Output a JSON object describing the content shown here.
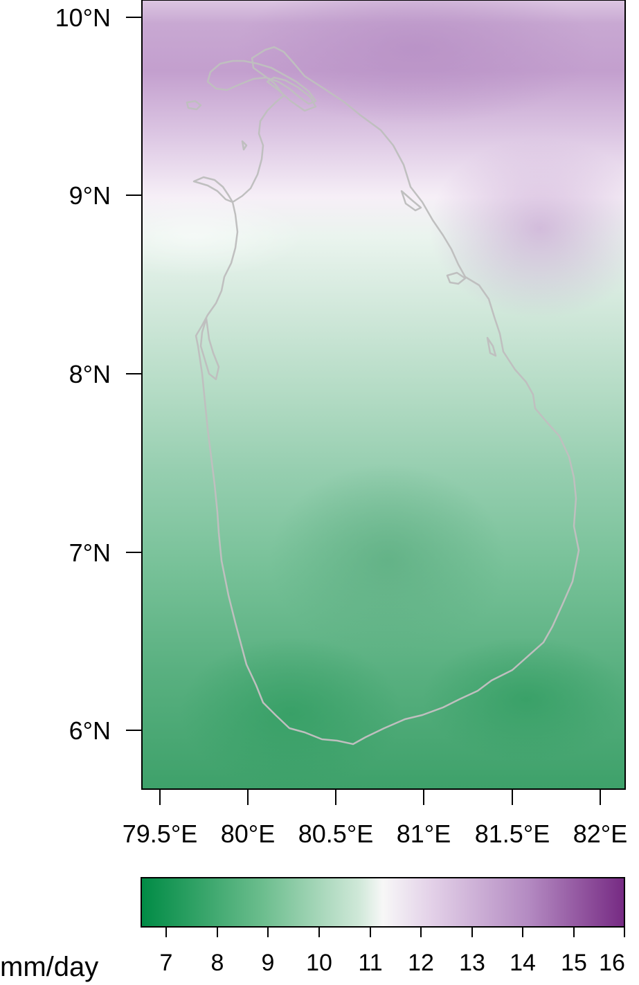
{
  "map": {
    "latitude_ticks": [
      "6°N",
      "7°N",
      "8°N",
      "9°N",
      "10°N"
    ],
    "longitude_ticks": [
      "79.5°E",
      "80°E",
      "80.5°E",
      "81°E",
      "81.5°E",
      "82°E"
    ],
    "extent": {
      "lon_min": 79.4,
      "lon_max": 82.13,
      "lat_min": 5.67,
      "lat_max": 10.1
    },
    "coastline_color": "#bfbfbf"
  },
  "legend": {
    "unit_label": "mm/day",
    "ticks": [
      "7",
      "8",
      "9",
      "10",
      "11",
      "12",
      "13",
      "14",
      "15",
      "16"
    ],
    "range": [
      6.5,
      16
    ],
    "colors": {
      "low": "#008b45",
      "mid": "#f7f7f7",
      "high": "#762a83"
    }
  }
}
